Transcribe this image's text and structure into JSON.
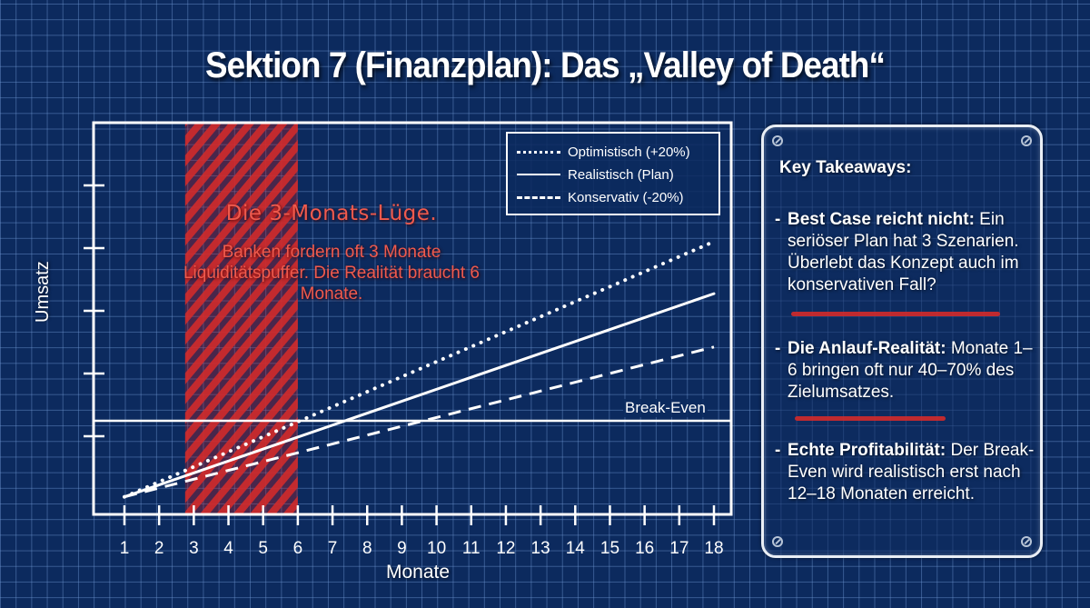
{
  "title": "Sektion 7 (Finanzplan): Das „Valley of Death“",
  "colors": {
    "background": "#0c2a5e",
    "grid": "#6e96d2",
    "line": "#ffffff",
    "highlight_red": "#d32a2a",
    "annotation_text": "#ef5a4d"
  },
  "chart": {
    "ylabel": "Umsatz",
    "xlabel": "Monate",
    "break_even_label": "Break-Even",
    "legend": [
      {
        "label": "Optimistisch (+20%)",
        "style": "dotted"
      },
      {
        "label": "Realistisch (Plan)",
        "style": "solid"
      },
      {
        "label": "Konservativ (-20%)",
        "style": "dashed"
      }
    ],
    "annotation": {
      "title": "Die 3-Monats-Lüge.",
      "body": "Banken fordern oft 3 Monate Liquiditätspuffer. Die Realität braucht 6 Monate."
    }
  },
  "chart_data": {
    "type": "line",
    "title": "Sektion 7 (Finanzplan): Das „Valley of Death“",
    "xlabel": "Monate",
    "ylabel": "Umsatz",
    "x": [
      1,
      2,
      3,
      4,
      5,
      6,
      7,
      8,
      9,
      10,
      11,
      12,
      13,
      14,
      15,
      16,
      17,
      18
    ],
    "xlim": [
      0.1,
      18.5
    ],
    "ylim": [
      0,
      6.3
    ],
    "y_ticks_unlabeled": [
      1.25,
      2.25,
      3.25,
      4.25,
      5.25
    ],
    "grid": false,
    "legend_position": "upper right",
    "series": [
      {
        "name": "Optimistisch (+20%)",
        "style": "dotted",
        "start": [
          1,
          0.28
        ],
        "end": [
          18,
          4.35
        ]
      },
      {
        "name": "Realistisch (Plan)",
        "style": "solid",
        "start": [
          1,
          0.28
        ],
        "end": [
          18,
          3.52
        ]
      },
      {
        "name": "Konservativ (-20%)",
        "style": "dashed",
        "start": [
          1,
          0.28
        ],
        "end": [
          18,
          2.67
        ]
      }
    ],
    "break_even": {
      "label": "Break-Even",
      "y": 1.49
    },
    "highlight_region": {
      "x_start": 2.75,
      "x_end": 6,
      "color": "#d32a2a",
      "label": "Die 3-Monats-Lüge."
    },
    "annotations": [
      "Die 3-Monats-Lüge.",
      "Banken fordern oft 3 Monate Liquiditätspuffer. Die Realität braucht 6 Monate."
    ],
    "break_even_crossings_approx": {
      "Optimistisch (+20%)": 6.0,
      "Realistisch (Plan)": 7.3,
      "Konservativ (-20%)": 10.2
    }
  },
  "takeaways": {
    "heading": "Key Takeaways:",
    "items": [
      {
        "bold": "Best Case reicht nicht:",
        "text": " Ein seriöser Plan hat 3 Szenarien. Überlebt das Konzept auch im konservativen Fall?"
      },
      {
        "bold": "Die Anlauf-Realität:",
        "text": " Monate 1–6 bringen oft nur 40–70% des Zielumsatzes."
      },
      {
        "bold": "Echte Profitabilität:",
        "text": " Der Break-Even wird realistisch erst nach 12–18 Monaten erreicht."
      }
    ]
  }
}
